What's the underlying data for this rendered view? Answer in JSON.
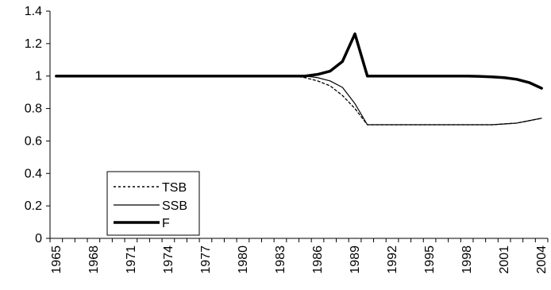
{
  "chart_data": {
    "type": "line",
    "title": "",
    "xlabel": "",
    "ylabel": "",
    "xlim": [
      1965,
      2004
    ],
    "ylim": [
      0,
      1.4
    ],
    "yticks": [
      {
        "v": 0,
        "label": "0"
      },
      {
        "v": 0.2,
        "label": "0.2"
      },
      {
        "v": 0.4,
        "label": "0.4"
      },
      {
        "v": 0.6,
        "label": "0.6"
      },
      {
        "v": 0.8,
        "label": "0.8"
      },
      {
        "v": 1.0,
        "label": "1"
      },
      {
        "v": 1.2,
        "label": "1.2"
      },
      {
        "v": 1.4,
        "label": "1.4"
      }
    ],
    "xtick_labels": [
      "1965",
      "1968",
      "1971",
      "1974",
      "1977",
      "1980",
      "1983",
      "1986",
      "1989",
      "1992",
      "1995",
      "1998",
      "2001",
      "2004"
    ],
    "grid": false,
    "legend_position": "center-left",
    "x": [
      1965,
      1966,
      1967,
      1968,
      1969,
      1970,
      1971,
      1972,
      1973,
      1974,
      1975,
      1976,
      1977,
      1978,
      1979,
      1980,
      1981,
      1982,
      1983,
      1984,
      1985,
      1986,
      1987,
      1988,
      1989,
      1990,
      1991,
      1992,
      1993,
      1994,
      1995,
      1996,
      1997,
      1998,
      1999,
      2000,
      2001,
      2002,
      2003,
      2004
    ],
    "series": [
      {
        "name": "TSB",
        "style": "dotted",
        "color": "#000000",
        "values": [
          1,
          1,
          1,
          1,
          1,
          1,
          1,
          1,
          1,
          1,
          1,
          1,
          1,
          1,
          1,
          1,
          1,
          1,
          1,
          1,
          0.99,
          0.97,
          0.94,
          0.88,
          0.8,
          0.7,
          0.7,
          0.7,
          0.7,
          0.7,
          0.7,
          0.7,
          0.7,
          0.7,
          0.7,
          0.7,
          0.705,
          0.71,
          0.725,
          0.74
        ]
      },
      {
        "name": "SSB",
        "style": "thin",
        "color": "#000000",
        "values": [
          1,
          1,
          1,
          1,
          1,
          1,
          1,
          1,
          1,
          1,
          1,
          1,
          1,
          1,
          1,
          1,
          1,
          1,
          1,
          1,
          1,
          0.99,
          0.97,
          0.93,
          0.83,
          0.7,
          0.7,
          0.7,
          0.7,
          0.7,
          0.7,
          0.7,
          0.7,
          0.7,
          0.7,
          0.7,
          0.705,
          0.71,
          0.725,
          0.74
        ]
      },
      {
        "name": "F",
        "style": "thick",
        "color": "#000000",
        "values": [
          1,
          1,
          1,
          1,
          1,
          1,
          1,
          1,
          1,
          1,
          1,
          1,
          1,
          1,
          1,
          1,
          1,
          1,
          1,
          1,
          1,
          1.01,
          1.03,
          1.09,
          1.26,
          1,
          1,
          1,
          1,
          1,
          1,
          1,
          1,
          1,
          0.998,
          0.995,
          0.99,
          0.98,
          0.96,
          0.925
        ]
      }
    ]
  }
}
